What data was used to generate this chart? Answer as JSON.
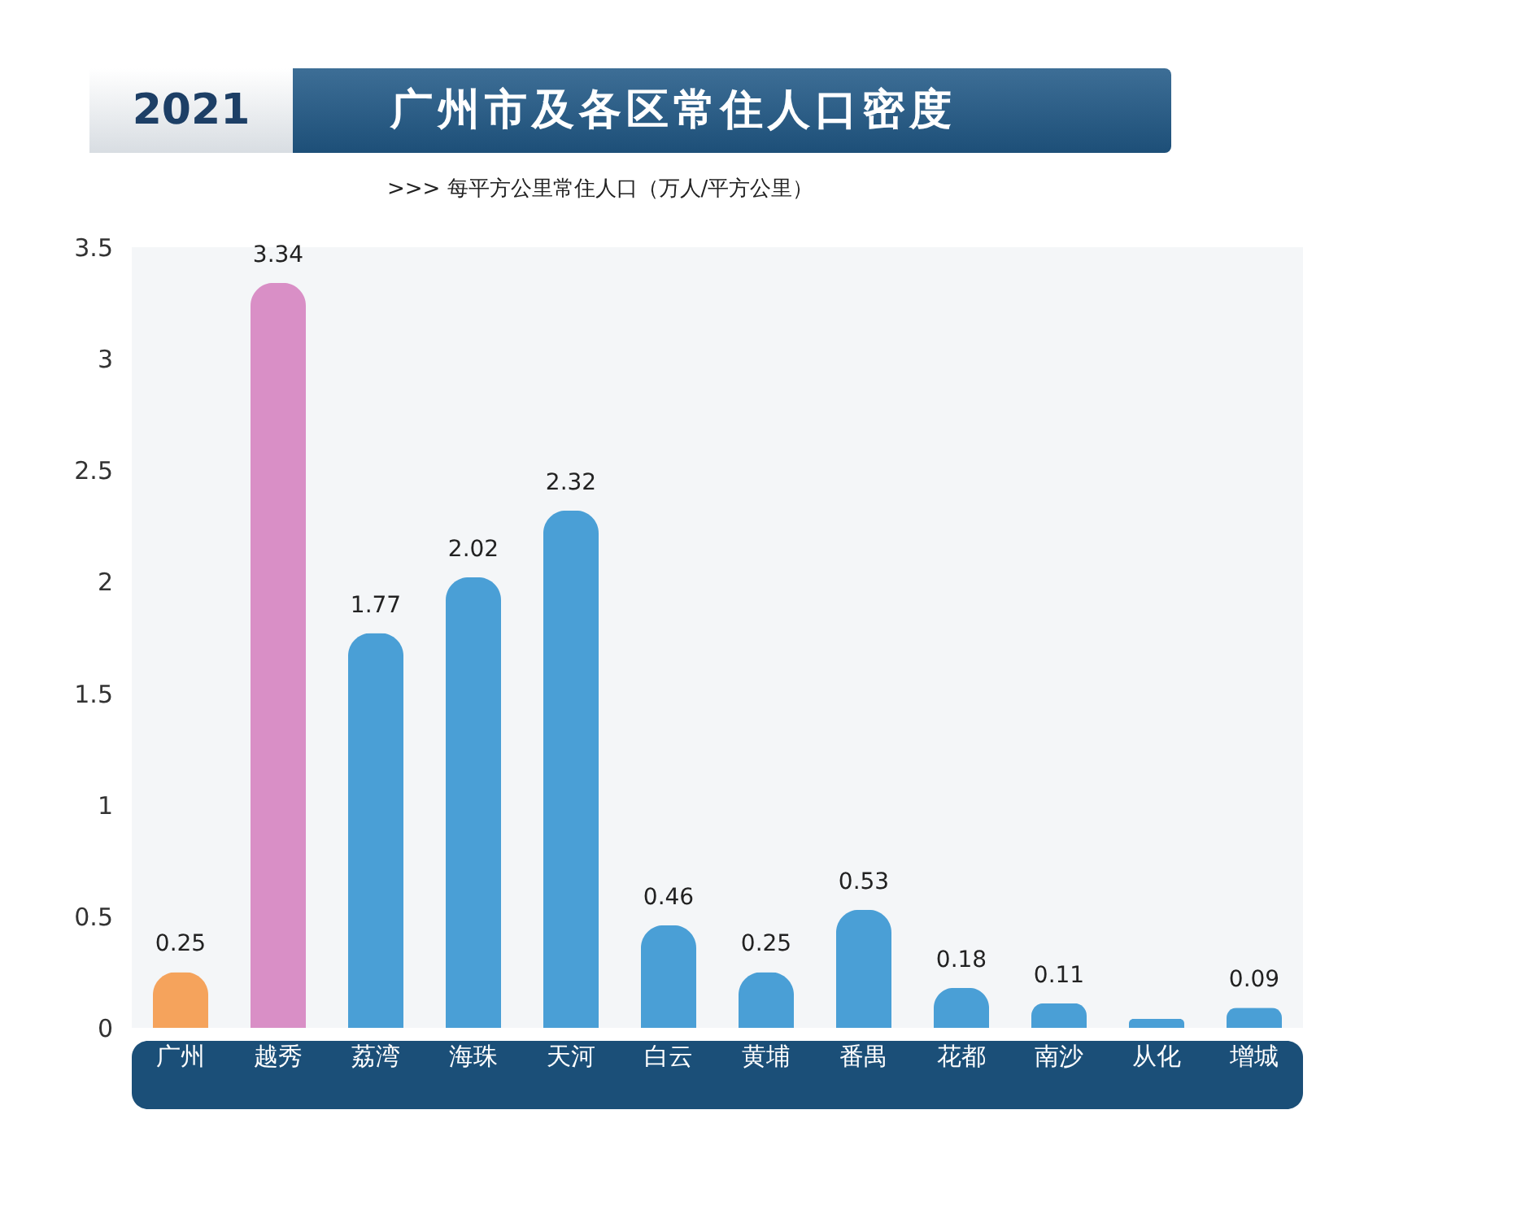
{
  "chart_data": {
    "type": "bar",
    "title": "广州市及各区常住人口密度",
    "subtitle": ">>>  每平方公里常住人口（万人/平方公里）",
    "annotations": [
      "2021"
    ],
    "categories": [
      "广州",
      "越秀",
      "荔湾",
      "海珠",
      "天河",
      "白云",
      "黄埔",
      "番禺",
      "花都",
      "南沙",
      "从化",
      "增城"
    ],
    "values": [
      0.25,
      3.34,
      1.77,
      2.02,
      2.32,
      0.46,
      0.25,
      0.53,
      0.18,
      0.11,
      0.04,
      0.09
    ],
    "value_labels": [
      "0.25",
      "3.34",
      "1.77",
      "2.02",
      "2.32",
      "0.46",
      "0.25",
      "0.53",
      "0.18",
      "0.11",
      null,
      "0.09"
    ],
    "colors": [
      "#f5a35c",
      "#d98fc6",
      "#4a9fd6",
      "#4a9fd6",
      "#4a9fd6",
      "#4a9fd6",
      "#4a9fd6",
      "#4a9fd6",
      "#4a9fd6",
      "#4a9fd6",
      "#4a9fd6",
      "#4a9fd6"
    ],
    "ylim": [
      0,
      3.5
    ],
    "yticks": [
      0,
      0.5,
      1,
      1.5,
      2,
      2.5,
      3,
      3.5
    ],
    "grid": false
  }
}
